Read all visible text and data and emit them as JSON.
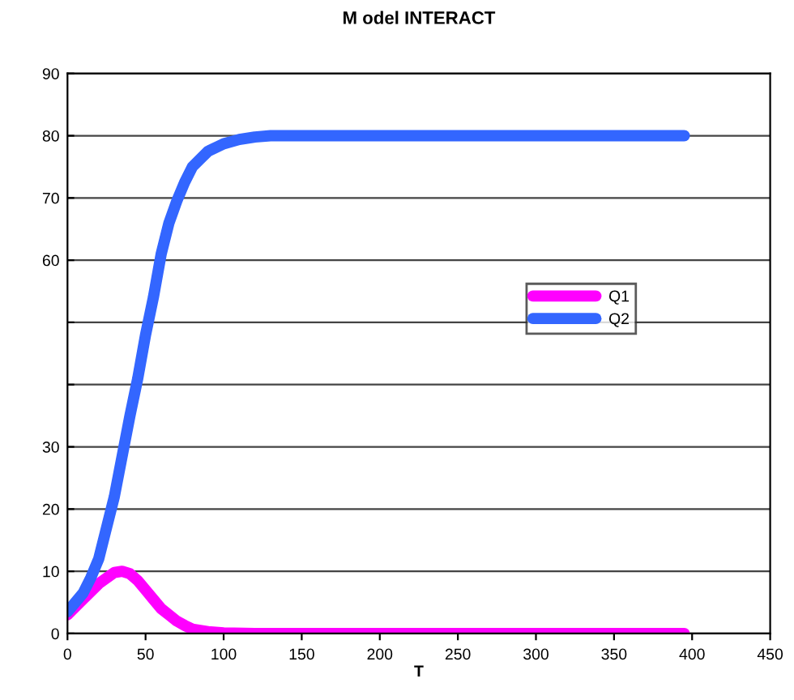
{
  "chart_data": {
    "type": "line",
    "title": "M odel INTERACT",
    "xlabel": "T",
    "xlim": [
      0,
      450
    ],
    "xticks": [
      0,
      50,
      100,
      150,
      200,
      250,
      300,
      350,
      400,
      450
    ],
    "ylim": [
      0,
      90
    ],
    "yticks": [
      0,
      10,
      20,
      30,
      {
        "value": 40,
        "label": null
      },
      {
        "value": 50,
        "label": null
      },
      60,
      70,
      80,
      90
    ],
    "grid": "y",
    "legend": "right",
    "line_style": "solid",
    "marker": "none",
    "series": [
      {
        "name": "Q1",
        "color": "#ff00ff",
        "x": [
          0,
          10,
          20,
          30,
          35,
          40,
          45,
          50,
          55,
          60,
          65,
          70,
          75,
          80,
          90,
          100,
          120,
          200,
          300,
          395
        ],
        "values": [
          3,
          5.5,
          8,
          9.8,
          10,
          9.6,
          8.5,
          7,
          5.5,
          4,
          3,
          2,
          1.3,
          0.7,
          0.3,
          0.1,
          0,
          0,
          0,
          0
        ]
      },
      {
        "name": "Q2",
        "color": "#3366ff",
        "x": [
          0,
          10,
          15,
          20,
          25,
          30,
          35,
          40,
          45,
          50,
          55,
          60,
          65,
          70,
          75,
          80,
          90,
          100,
          110,
          120,
          130,
          200,
          300,
          395
        ],
        "values": [
          3.5,
          6.5,
          9,
          12,
          17,
          22,
          28.5,
          35,
          41,
          48,
          54,
          61,
          66,
          69.5,
          72.5,
          75,
          77.5,
          78.7,
          79.4,
          79.8,
          80,
          80,
          80,
          80
        ]
      }
    ]
  }
}
